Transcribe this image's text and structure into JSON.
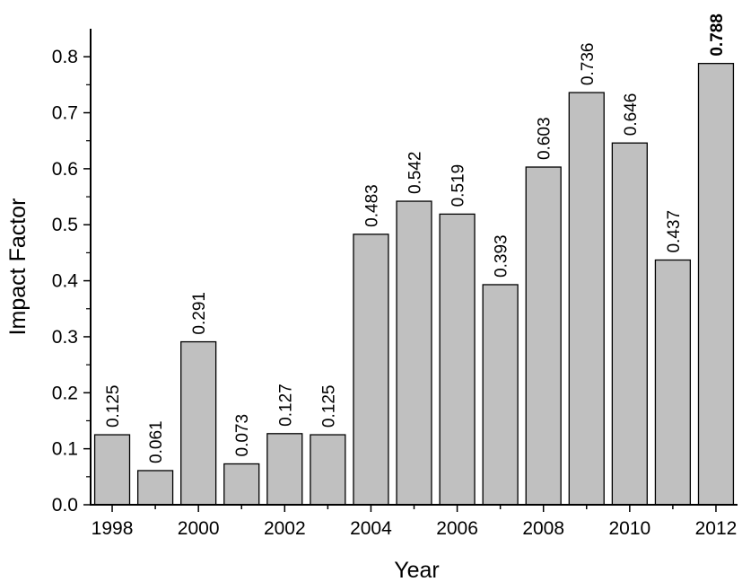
{
  "chart_data": {
    "type": "bar",
    "xlabel": "Year",
    "ylabel": "Impact Factor",
    "categories": [
      "1998",
      "1999",
      "2000",
      "2001",
      "2002",
      "2003",
      "2004",
      "2005",
      "2006",
      "2007",
      "2008",
      "2009",
      "2010",
      "2011",
      "2012"
    ],
    "values": [
      0.125,
      0.061,
      0.291,
      0.073,
      0.127,
      0.125,
      0.483,
      0.542,
      0.519,
      0.393,
      0.603,
      0.736,
      0.646,
      0.437,
      0.788
    ],
    "value_labels": [
      "0.125",
      "0.061",
      "0.291",
      "0.073",
      "0.127",
      "0.125",
      "0.483",
      "0.542",
      "0.519",
      "0.393",
      "0.603",
      "0.736",
      "0.646",
      "0.437",
      "0.788"
    ],
    "highlighted_index": 14,
    "x_tick_labels": [
      "1998",
      "2000",
      "2002",
      "2004",
      "2006",
      "2008",
      "2010",
      "2012"
    ],
    "y_tick_labels": [
      "0.0",
      "0.1",
      "0.2",
      "0.3",
      "0.4",
      "0.5",
      "0.6",
      "0.7",
      "0.8"
    ],
    "ylim": [
      0,
      0.85
    ],
    "grid": false,
    "legend": "none",
    "colors": {
      "bar_fill": "#c0c0c0",
      "bar_stroke": "#000000"
    }
  }
}
